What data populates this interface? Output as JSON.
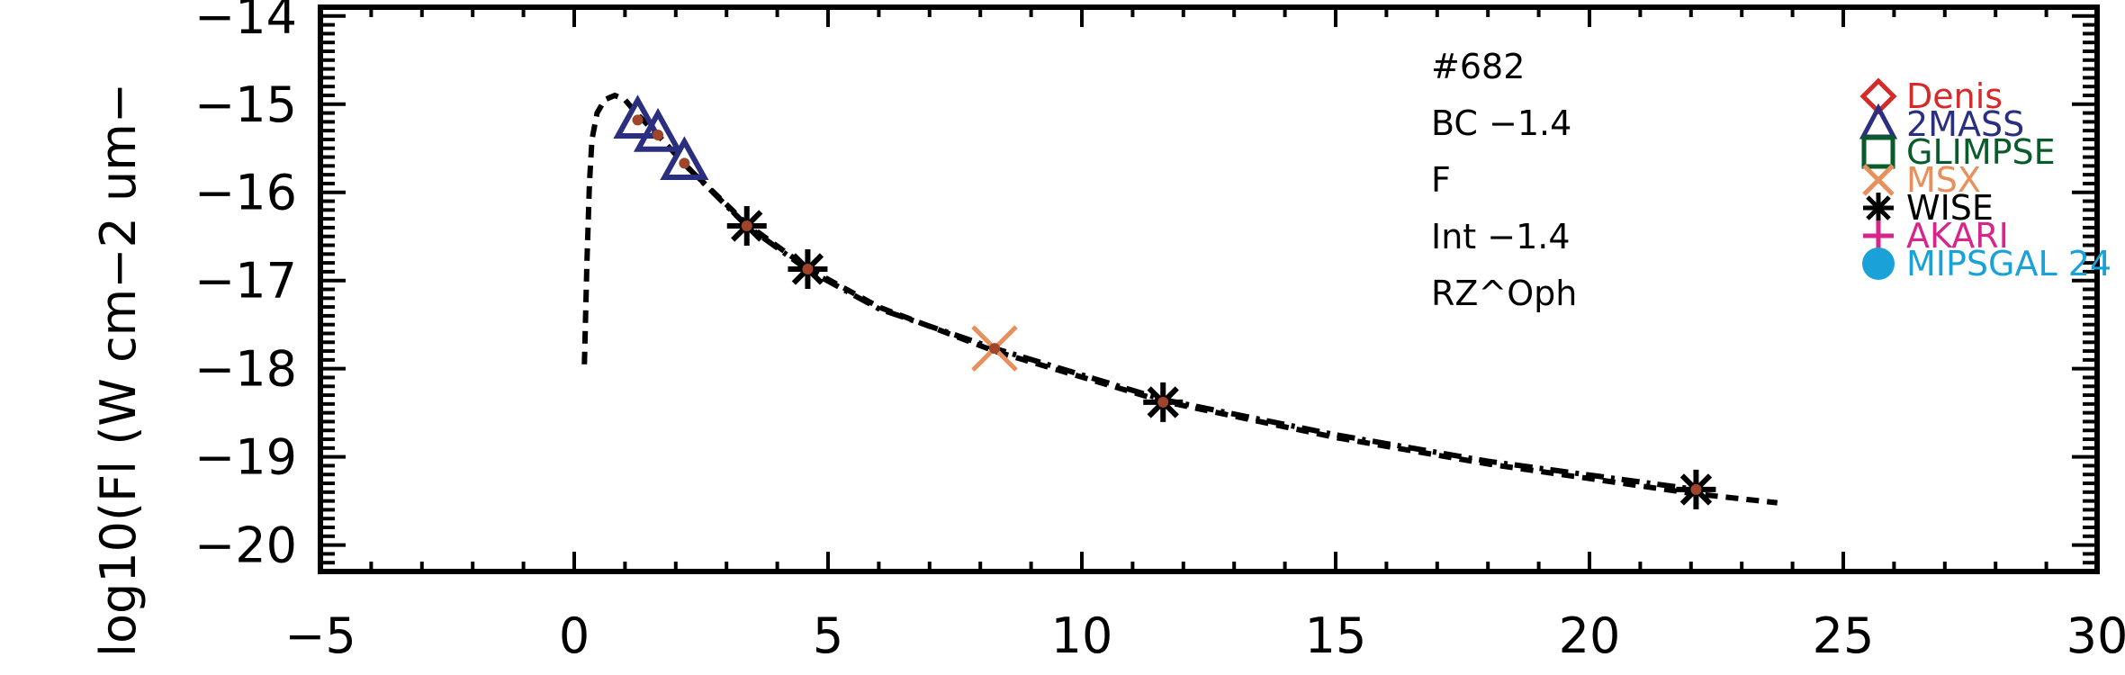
{
  "chart_data": {
    "type": "scatter",
    "title": "",
    "xlabel": "",
    "ylabel": "log10(Fl (W cm−2 um−",
    "xlim": [
      -5,
      30
    ],
    "ylim": [
      -20.3,
      -13.9
    ],
    "x_ticks": [
      -5,
      0,
      5,
      10,
      15,
      20,
      25,
      30
    ],
    "x_tick_labels": [
      "−5",
      "0",
      "5",
      "10",
      "15",
      "20",
      "25",
      "30"
    ],
    "y_ticks": [
      -20,
      -19,
      -18,
      -17,
      -16,
      -15,
      -14
    ],
    "y_tick_labels": [
      "−20",
      "−19",
      "−18",
      "−17",
      "−16",
      "−15",
      "−14"
    ],
    "annotations": [
      "#682",
      "BC −1.4",
      "F",
      "Int −1.4",
      "RZ^Oph"
    ],
    "legend": [
      {
        "name": "Denis",
        "color": "#d42a2a",
        "marker": "diamond-icon"
      },
      {
        "name": "2MASS",
        "color": "#2b2f7f",
        "marker": "triangle-icon"
      },
      {
        "name": "GLIMPSE",
        "color": "#0a5b2c",
        "marker": "square-icon"
      },
      {
        "name": "MSX",
        "color": "#e8905c",
        "marker": "x-icon"
      },
      {
        "name": "WISE",
        "color": "#000000",
        "marker": "asterisk-icon"
      },
      {
        "name": "AKARI",
        "color": "#d6268b",
        "marker": "plus-icon"
      },
      {
        "name": "MIPSGAL 24",
        "color": "#1aa2d8",
        "marker": "circle-icon"
      }
    ],
    "legend_position": "top-right",
    "series": [
      {
        "name": "2MASS",
        "marker": "triangle",
        "color": "#2b2f7f",
        "x": [
          1.25,
          1.65,
          2.17
        ],
        "y": [
          -15.18,
          -15.33,
          -15.65
        ]
      },
      {
        "name": "WISE",
        "marker": "asterisk",
        "color": "#000000",
        "x": [
          3.4,
          4.6,
          11.6,
          22.1
        ],
        "y": [
          -16.38,
          -16.87,
          -18.38,
          -19.37
        ]
      },
      {
        "name": "MSX",
        "marker": "x",
        "color": "#e8905c",
        "x": [
          8.28
        ],
        "y": [
          -17.77
        ]
      },
      {
        "name": "",
        "marker": "dot",
        "color": "#a0442a",
        "x": [
          1.25,
          1.65,
          2.17,
          3.4,
          4.6,
          8.28,
          11.6,
          22.1
        ],
        "y": [
          -15.18,
          -15.35,
          -15.67,
          -16.38,
          -16.87,
          -17.77,
          -18.38,
          -19.37
        ]
      }
    ],
    "curves": [
      {
        "style": "dashed",
        "color": "#000000",
        "x": [
          0.2,
          0.25,
          0.3,
          0.35,
          0.45,
          0.6,
          0.8,
          1.0,
          1.25,
          1.65,
          2.17,
          3.4,
          4.6,
          6.0,
          8.28,
          11.6,
          15.0,
          18.0,
          22.1,
          23.7
        ],
        "y": [
          -17.95,
          -16.8,
          -15.9,
          -15.4,
          -15.1,
          -14.95,
          -14.9,
          -14.95,
          -15.12,
          -15.35,
          -15.68,
          -16.36,
          -16.86,
          -17.3,
          -17.8,
          -18.37,
          -18.78,
          -19.08,
          -19.42,
          -19.52
        ]
      },
      {
        "style": "dashdot",
        "color": "#000000",
        "x": [
          2.17,
          3.4,
          4.6,
          6.0,
          8.28,
          11.6,
          15.0,
          18.0,
          22.1
        ],
        "y": [
          -15.68,
          -16.38,
          -16.88,
          -17.32,
          -17.77,
          -18.35,
          -18.75,
          -19.05,
          -19.37
        ]
      }
    ]
  }
}
